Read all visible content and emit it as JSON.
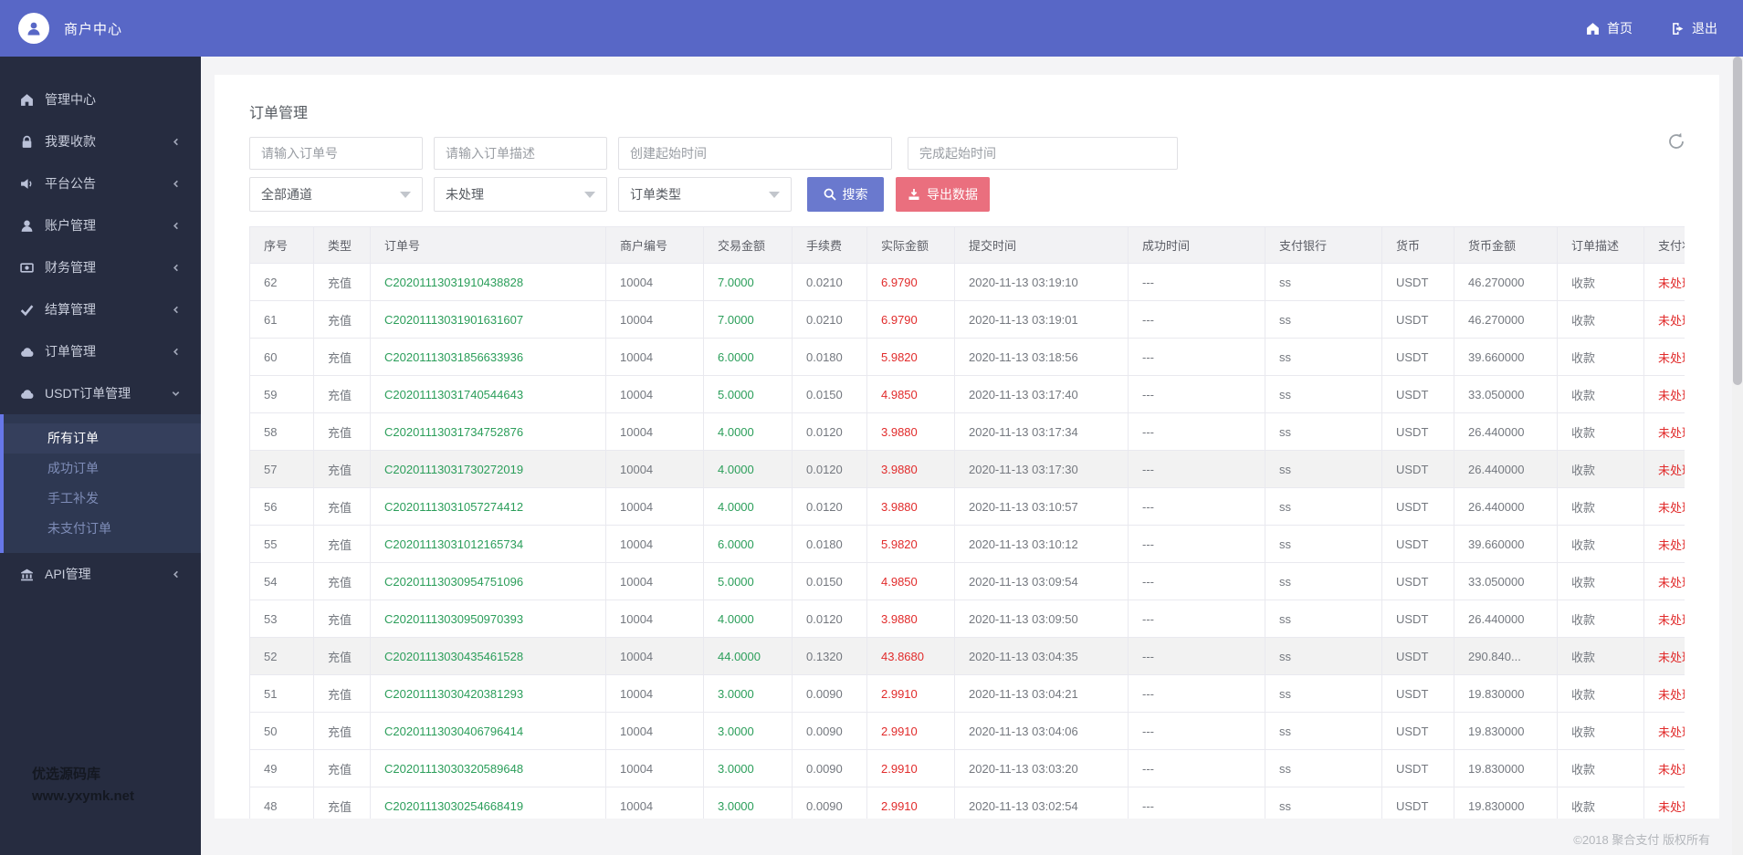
{
  "header": {
    "brand": "商户中心",
    "nav_home": "首页",
    "nav_logout": "退出"
  },
  "sidebar": {
    "items": [
      {
        "key": "dashboard",
        "label": "管理中心",
        "icon": "home-icon",
        "chevron": null
      },
      {
        "key": "collect",
        "label": "我要收款",
        "icon": "lock-icon",
        "chevron": "left"
      },
      {
        "key": "announce",
        "label": "平台公告",
        "icon": "speaker-icon",
        "chevron": "left"
      },
      {
        "key": "account",
        "label": "账户管理",
        "icon": "user-icon",
        "chevron": "left"
      },
      {
        "key": "finance",
        "label": "财务管理",
        "icon": "money-icon",
        "chevron": "left"
      },
      {
        "key": "settlement",
        "label": "结算管理",
        "icon": "check-icon",
        "chevron": "left"
      },
      {
        "key": "orders",
        "label": "订单管理",
        "icon": "cloud-icon",
        "chevron": "left"
      },
      {
        "key": "usdt-orders",
        "label": "USDT订单管理",
        "icon": "cloud-icon",
        "chevron": "down",
        "open": true,
        "submenu": [
          {
            "key": "all-orders",
            "label": "所有订单",
            "active": true
          },
          {
            "key": "success-orders",
            "label": "成功订单",
            "active": false
          },
          {
            "key": "manual-reissue",
            "label": "手工补发",
            "active": false
          },
          {
            "key": "unpaid-orders",
            "label": "未支付订单",
            "active": false
          }
        ]
      },
      {
        "key": "api",
        "label": "API管理",
        "icon": "bank-icon",
        "chevron": "left"
      }
    ],
    "watermark_line1": "优选源码库",
    "watermark_line2": "www.yxymk.net"
  },
  "panel": {
    "title": "订单管理",
    "filters": {
      "inputs": [
        {
          "placeholder": "请输入订单号"
        },
        {
          "placeholder": "请输入订单描述"
        },
        {
          "placeholder": "创建起始时间"
        },
        {
          "placeholder": "完成起始时间"
        }
      ],
      "selects": [
        {
          "value": "全部通道"
        },
        {
          "value": "未处理"
        },
        {
          "value": "订单类型"
        }
      ],
      "search_label": "搜索",
      "export_label": "导出数据"
    },
    "table": {
      "headers": [
        "序号",
        "类型",
        "订单号",
        "商户编号",
        "交易金额",
        "手续费",
        "实际金额",
        "提交时间",
        "成功时间",
        "支付银行",
        "货币",
        "货币金额",
        "订单描述",
        "支付状态"
      ],
      "rows": [
        {
          "serial": "62",
          "type": "充值",
          "order_no": "C20201113031910438828",
          "merchant_no": "10004",
          "amount": "7.0000",
          "fee": "0.0210",
          "actual": "6.9790",
          "submit_time": "2020-11-13 03:19:10",
          "success_time": "---",
          "bank": "ss",
          "currency": "USDT",
          "currency_amount": "46.270000",
          "desc": "收款",
          "status": "未处理",
          "striped": false
        },
        {
          "serial": "61",
          "type": "充值",
          "order_no": "C20201113031901631607",
          "merchant_no": "10004",
          "amount": "7.0000",
          "fee": "0.0210",
          "actual": "6.9790",
          "submit_time": "2020-11-13 03:19:01",
          "success_time": "---",
          "bank": "ss",
          "currency": "USDT",
          "currency_amount": "46.270000",
          "desc": "收款",
          "status": "未处理",
          "striped": false
        },
        {
          "serial": "60",
          "type": "充值",
          "order_no": "C20201113031856633936",
          "merchant_no": "10004",
          "amount": "6.0000",
          "fee": "0.0180",
          "actual": "5.9820",
          "submit_time": "2020-11-13 03:18:56",
          "success_time": "---",
          "bank": "ss",
          "currency": "USDT",
          "currency_amount": "39.660000",
          "desc": "收款",
          "status": "未处理",
          "striped": false
        },
        {
          "serial": "59",
          "type": "充值",
          "order_no": "C20201113031740544643",
          "merchant_no": "10004",
          "amount": "5.0000",
          "fee": "0.0150",
          "actual": "4.9850",
          "submit_time": "2020-11-13 03:17:40",
          "success_time": "---",
          "bank": "ss",
          "currency": "USDT",
          "currency_amount": "33.050000",
          "desc": "收款",
          "status": "未处理",
          "striped": false
        },
        {
          "serial": "58",
          "type": "充值",
          "order_no": "C20201113031734752876",
          "merchant_no": "10004",
          "amount": "4.0000",
          "fee": "0.0120",
          "actual": "3.9880",
          "submit_time": "2020-11-13 03:17:34",
          "success_time": "---",
          "bank": "ss",
          "currency": "USDT",
          "currency_amount": "26.440000",
          "desc": "收款",
          "status": "未处理",
          "striped": false
        },
        {
          "serial": "57",
          "type": "充值",
          "order_no": "C20201113031730272019",
          "merchant_no": "10004",
          "amount": "4.0000",
          "fee": "0.0120",
          "actual": "3.9880",
          "submit_time": "2020-11-13 03:17:30",
          "success_time": "---",
          "bank": "ss",
          "currency": "USDT",
          "currency_amount": "26.440000",
          "desc": "收款",
          "status": "未处理",
          "striped": true
        },
        {
          "serial": "56",
          "type": "充值",
          "order_no": "C20201113031057274412",
          "merchant_no": "10004",
          "amount": "4.0000",
          "fee": "0.0120",
          "actual": "3.9880",
          "submit_time": "2020-11-13 03:10:57",
          "success_time": "---",
          "bank": "ss",
          "currency": "USDT",
          "currency_amount": "26.440000",
          "desc": "收款",
          "status": "未处理",
          "striped": false
        },
        {
          "serial": "55",
          "type": "充值",
          "order_no": "C20201113031012165734",
          "merchant_no": "10004",
          "amount": "6.0000",
          "fee": "0.0180",
          "actual": "5.9820",
          "submit_time": "2020-11-13 03:10:12",
          "success_time": "---",
          "bank": "ss",
          "currency": "USDT",
          "currency_amount": "39.660000",
          "desc": "收款",
          "status": "未处理",
          "striped": false
        },
        {
          "serial": "54",
          "type": "充值",
          "order_no": "C20201113030954751096",
          "merchant_no": "10004",
          "amount": "5.0000",
          "fee": "0.0150",
          "actual": "4.9850",
          "submit_time": "2020-11-13 03:09:54",
          "success_time": "---",
          "bank": "ss",
          "currency": "USDT",
          "currency_amount": "33.050000",
          "desc": "收款",
          "status": "未处理",
          "striped": false
        },
        {
          "serial": "53",
          "type": "充值",
          "order_no": "C20201113030950970393",
          "merchant_no": "10004",
          "amount": "4.0000",
          "fee": "0.0120",
          "actual": "3.9880",
          "submit_time": "2020-11-13 03:09:50",
          "success_time": "---",
          "bank": "ss",
          "currency": "USDT",
          "currency_amount": "26.440000",
          "desc": "收款",
          "status": "未处理",
          "striped": false
        },
        {
          "serial": "52",
          "type": "充值",
          "order_no": "C20201113030435461528",
          "merchant_no": "10004",
          "amount": "44.0000",
          "fee": "0.1320",
          "actual": "43.8680",
          "submit_time": "2020-11-13 03:04:35",
          "success_time": "---",
          "bank": "ss",
          "currency": "USDT",
          "currency_amount": "290.840...",
          "desc": "收款",
          "status": "未处理",
          "striped": true
        },
        {
          "serial": "51",
          "type": "充值",
          "order_no": "C20201113030420381293",
          "merchant_no": "10004",
          "amount": "3.0000",
          "fee": "0.0090",
          "actual": "2.9910",
          "submit_time": "2020-11-13 03:04:21",
          "success_time": "---",
          "bank": "ss",
          "currency": "USDT",
          "currency_amount": "19.830000",
          "desc": "收款",
          "status": "未处理",
          "striped": false
        },
        {
          "serial": "50",
          "type": "充值",
          "order_no": "C20201113030406796414",
          "merchant_no": "10004",
          "amount": "3.0000",
          "fee": "0.0090",
          "actual": "2.9910",
          "submit_time": "2020-11-13 03:04:06",
          "success_time": "---",
          "bank": "ss",
          "currency": "USDT",
          "currency_amount": "19.830000",
          "desc": "收款",
          "status": "未处理",
          "striped": false
        },
        {
          "serial": "49",
          "type": "充值",
          "order_no": "C20201113030320589648",
          "merchant_no": "10004",
          "amount": "3.0000",
          "fee": "0.0090",
          "actual": "2.9910",
          "submit_time": "2020-11-13 03:03:20",
          "success_time": "---",
          "bank": "ss",
          "currency": "USDT",
          "currency_amount": "19.830000",
          "desc": "收款",
          "status": "未处理",
          "striped": false
        },
        {
          "serial": "48",
          "type": "充值",
          "order_no": "C20201113030254668419",
          "merchant_no": "10004",
          "amount": "3.0000",
          "fee": "0.0090",
          "actual": "2.9910",
          "submit_time": "2020-11-13 03:02:54",
          "success_time": "---",
          "bank": "ss",
          "currency": "USDT",
          "currency_amount": "19.830000",
          "desc": "收款",
          "status": "未处理",
          "striped": false
        }
      ]
    }
  },
  "footer": {
    "copyright": "©2018 聚合支付 版权所有"
  },
  "colors": {
    "header_blue": "#5867c6",
    "sidebar_bg": "#262c40",
    "submenu_bg": "#2e3852",
    "accent_border": "#6777e8",
    "search_btn": "#6a79ce",
    "export_btn": "#ea6f7e",
    "green_text": "#2b9e5a",
    "red_text": "#e12b2b"
  }
}
